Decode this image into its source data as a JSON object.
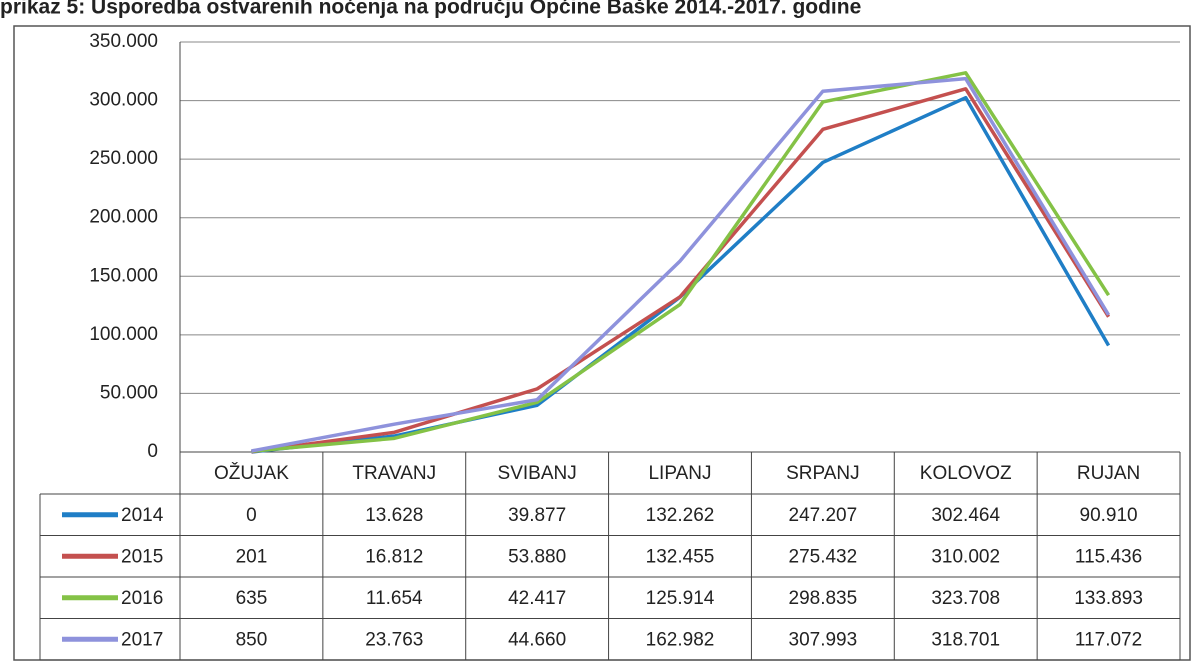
{
  "chart_data": {
    "type": "line",
    "title": "prikaz 5: Usporedba ostvarenih noćenja na području Općine Baške 2014.-2017. godine",
    "categories": [
      "OŽUJAK",
      "TRAVANJ",
      "SVIBANJ",
      "LIPANJ",
      "SRPANJ",
      "KOLOVOZ",
      "RUJAN"
    ],
    "series": [
      {
        "name": "2014",
        "color": "#1f7ec6",
        "values": [
          0,
          13628,
          39877,
          132262,
          247207,
          302464,
          90910
        ],
        "value_labels": [
          "0",
          "13.628",
          "39.877",
          "132.262",
          "247.207",
          "302.464",
          "90.910"
        ]
      },
      {
        "name": "2015",
        "color": "#c4504f",
        "values": [
          201,
          16812,
          53880,
          132455,
          275432,
          310002,
          115436
        ],
        "value_labels": [
          "201",
          "16.812",
          "53.880",
          "132.455",
          "275.432",
          "310.002",
          "115.436"
        ]
      },
      {
        "name": "2016",
        "color": "#84c246",
        "values": [
          635,
          11654,
          42417,
          125914,
          298835,
          323708,
          133893
        ],
        "value_labels": [
          "635",
          "11.654",
          "42.417",
          "125.914",
          "298.835",
          "323.708",
          "133.893"
        ]
      },
      {
        "name": "2017",
        "color": "#8e92dc",
        "values": [
          850,
          23763,
          44660,
          162982,
          307993,
          318701,
          117072
        ],
        "value_labels": [
          "850",
          "23.763",
          "44.660",
          "162.982",
          "307.993",
          "318.701",
          "117.072"
        ]
      }
    ],
    "ylim": [
      0,
      350000
    ],
    "yticks": [
      0,
      {
        "value": 50000,
        "label": "50.000"
      },
      {
        "value": 100000,
        "label": "100.000"
      },
      {
        "value": 150000,
        "label": "150.000"
      },
      {
        "value": 200000,
        "label": "200.000"
      },
      {
        "value": 250000,
        "label": "250.000"
      },
      {
        "value": 300000,
        "label": "300.000"
      },
      {
        "value": 350000,
        "label": "350.000"
      }
    ],
    "grid": true
  }
}
